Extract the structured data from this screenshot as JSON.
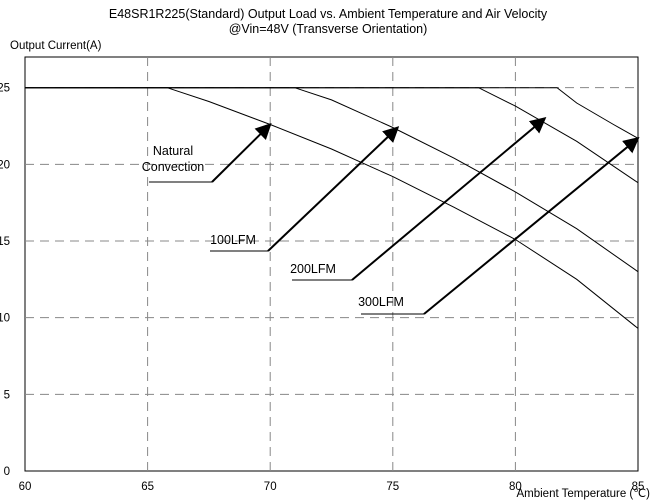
{
  "chart_data": {
    "type": "line",
    "title": "E48SR1R225(Standard)  Output Load vs. Ambient Temperature and Air Velocity",
    "subtitle": "@Vin=48V (Transverse Orientation)",
    "ylabel": "Output Current(A)",
    "xlabel": "Ambient Temperature (℃)",
    "xlim": [
      60,
      85
    ],
    "ylim": [
      0,
      27
    ],
    "x_ticks": [
      60,
      65,
      70,
      75,
      80,
      85
    ],
    "y_ticks": [
      0,
      5,
      10,
      15,
      20,
      25
    ],
    "x_tick_labels": [
      "60",
      "65",
      "70",
      "75",
      "80",
      "85"
    ],
    "y_tick_labels": [
      "0",
      "5",
      "10",
      "15",
      "20",
      "25"
    ],
    "grid": true,
    "series": [
      {
        "name": "Natural Convection",
        "x": [
          60,
          65.8,
          67.5,
          70,
          72.5,
          75,
          77.5,
          80,
          82.5,
          85
        ],
        "y": [
          25,
          25,
          24.1,
          22.6,
          21.0,
          19.2,
          17.2,
          15.1,
          12.5,
          9.3
        ]
      },
      {
        "name": "100LFM",
        "x": [
          60,
          71.0,
          72.5,
          75,
          77.5,
          80,
          82.5,
          85
        ],
        "y": [
          25,
          25,
          24.2,
          22.4,
          20.4,
          18.2,
          15.8,
          13.0
        ]
      },
      {
        "name": "200LFM",
        "x": [
          60,
          78.5,
          80,
          82.5,
          85
        ],
        "y": [
          25,
          25,
          23.8,
          21.5,
          18.8
        ]
      },
      {
        "name": "300LFM",
        "x": [
          60,
          81.7,
          82.5,
          84,
          85
        ],
        "y": [
          25,
          25,
          24.0,
          22.6,
          21.7
        ]
      }
    ],
    "annotations": [
      {
        "lines": [
          "Natural",
          "Convection"
        ],
        "target": [
          70,
          22.6
        ]
      },
      {
        "lines": [
          "100LFM"
        ],
        "target": [
          75.2,
          22.4
        ]
      },
      {
        "lines": [
          "200LFM"
        ],
        "target": [
          81.2,
          23.0
        ]
      },
      {
        "lines": [
          "300LFM"
        ],
        "target": [
          85,
          21.7
        ]
      }
    ]
  }
}
